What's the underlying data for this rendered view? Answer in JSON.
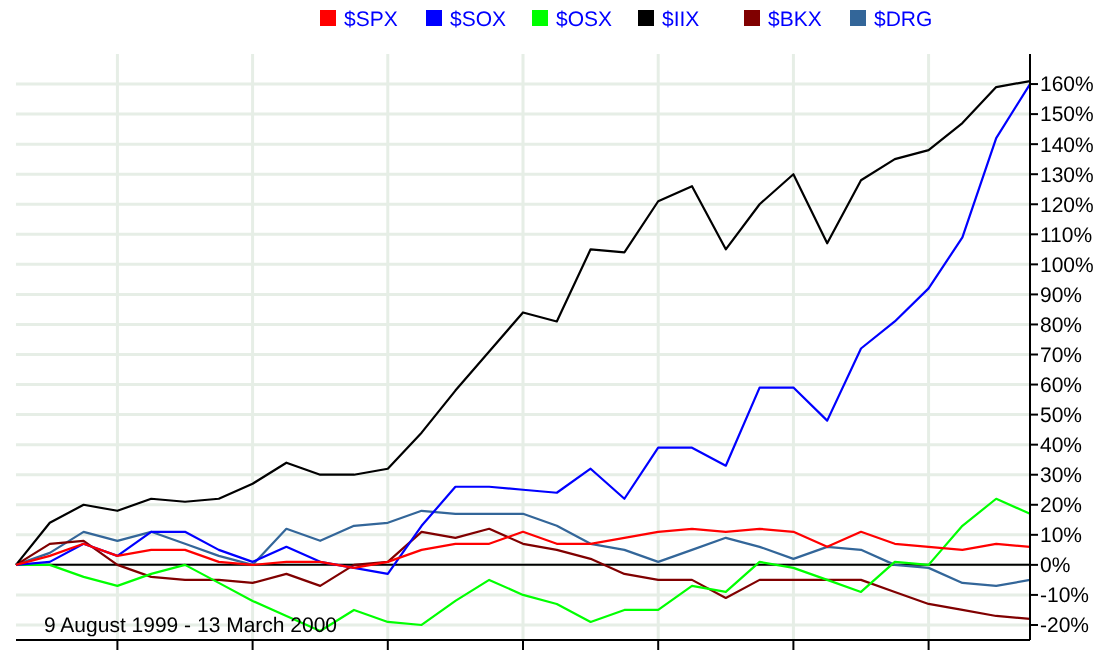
{
  "chart_data": {
    "type": "line",
    "annotations": [
      "9 August 1999 - 13 March 2000"
    ],
    "categories": [
      null,
      null,
      null,
      null,
      null,
      null,
      null,
      null,
      null,
      null,
      null,
      null,
      null,
      null,
      null,
      null,
      null,
      null,
      null,
      null,
      null,
      null,
      null,
      null,
      null,
      null,
      null,
      null,
      null,
      null,
      null
    ],
    "ylim": [
      -25,
      170
    ],
    "yticks": [
      {
        "value": -20,
        "label": "-20%"
      },
      {
        "value": -10,
        "label": "-10%"
      },
      {
        "value": 0,
        "label": "0%"
      },
      {
        "value": 10,
        "label": "10%"
      },
      {
        "value": 20,
        "label": "20%"
      },
      {
        "value": 30,
        "label": "30%"
      },
      {
        "value": 40,
        "label": "40%"
      },
      {
        "value": 50,
        "label": "50%"
      },
      {
        "value": 60,
        "label": "60%"
      },
      {
        "value": 70,
        "label": "70%"
      },
      {
        "value": 80,
        "label": "80%"
      },
      {
        "value": 90,
        "label": "90%"
      },
      {
        "value": 100,
        "label": "100%"
      },
      {
        "value": 110,
        "label": "110%"
      },
      {
        "value": 120,
        "label": "120%"
      },
      {
        "value": 130,
        "label": "130%"
      },
      {
        "value": 140,
        "label": "140%"
      },
      {
        "value": 150,
        "label": "150%"
      },
      {
        "value": 160,
        "label": "160%"
      }
    ],
    "tick_labels": "y",
    "grid": true,
    "legend": "top",
    "line_style": "solid",
    "marker": "none",
    "ref_lines": [
      {
        "axis": "y",
        "value": 0,
        "label": null,
        "color": "#000000"
      }
    ],
    "series": [
      {
        "name": "$SPX",
        "color": "#ff0000",
        "values": [
          0,
          3,
          7,
          3,
          5,
          5,
          1,
          0,
          1,
          1,
          -1,
          1,
          5,
          7,
          7,
          11,
          7,
          7,
          9,
          11,
          12,
          11,
          12,
          11,
          6,
          11,
          7,
          6,
          5,
          7,
          6
        ]
      },
      {
        "name": "$SOX",
        "color": "#0000ff",
        "values": [
          0,
          1,
          7,
          3,
          11,
          11,
          5,
          1,
          6,
          1,
          -1,
          -3,
          13,
          26,
          26,
          25,
          24,
          32,
          22,
          39,
          39,
          33,
          59,
          59,
          48,
          72,
          81,
          92,
          109,
          142,
          160
        ]
      },
      {
        "name": "$OSX",
        "color": "#00ff00",
        "values": [
          0,
          0,
          -4,
          -7,
          -3,
          0,
          -6,
          -12,
          -17,
          -22,
          -15,
          -19,
          -20,
          -12,
          -5,
          -10,
          -13,
          -19,
          -15,
          -15,
          -7,
          -9,
          1,
          -1,
          -5,
          -9,
          1,
          0,
          13,
          22,
          17
        ]
      },
      {
        "name": "$IIX",
        "color": "#000000",
        "values": [
          0,
          14,
          20,
          18,
          22,
          21,
          22,
          27,
          34,
          30,
          30,
          32,
          44,
          58,
          71,
          84,
          81,
          105,
          104,
          121,
          126,
          105,
          120,
          130,
          107,
          128,
          135,
          138,
          147,
          159,
          161
        ]
      },
      {
        "name": "$BKX",
        "color": "#800000",
        "values": [
          0,
          7,
          8,
          0,
          -4,
          -5,
          -5,
          -6,
          -3,
          -7,
          0,
          1,
          11,
          9,
          12,
          7,
          5,
          2,
          -3,
          -5,
          -5,
          -11,
          -5,
          -5,
          -5,
          -5,
          -9,
          -13,
          -15,
          -17,
          -18
        ]
      },
      {
        "name": "$DRG",
        "color": "#336699",
        "values": [
          0,
          4,
          11,
          8,
          11,
          7,
          3,
          0,
          12,
          8,
          13,
          14,
          18,
          17,
          17,
          17,
          13,
          7,
          5,
          1,
          5,
          9,
          6,
          2,
          6,
          5,
          0,
          -1,
          -6,
          -7,
          -5
        ]
      }
    ]
  }
}
